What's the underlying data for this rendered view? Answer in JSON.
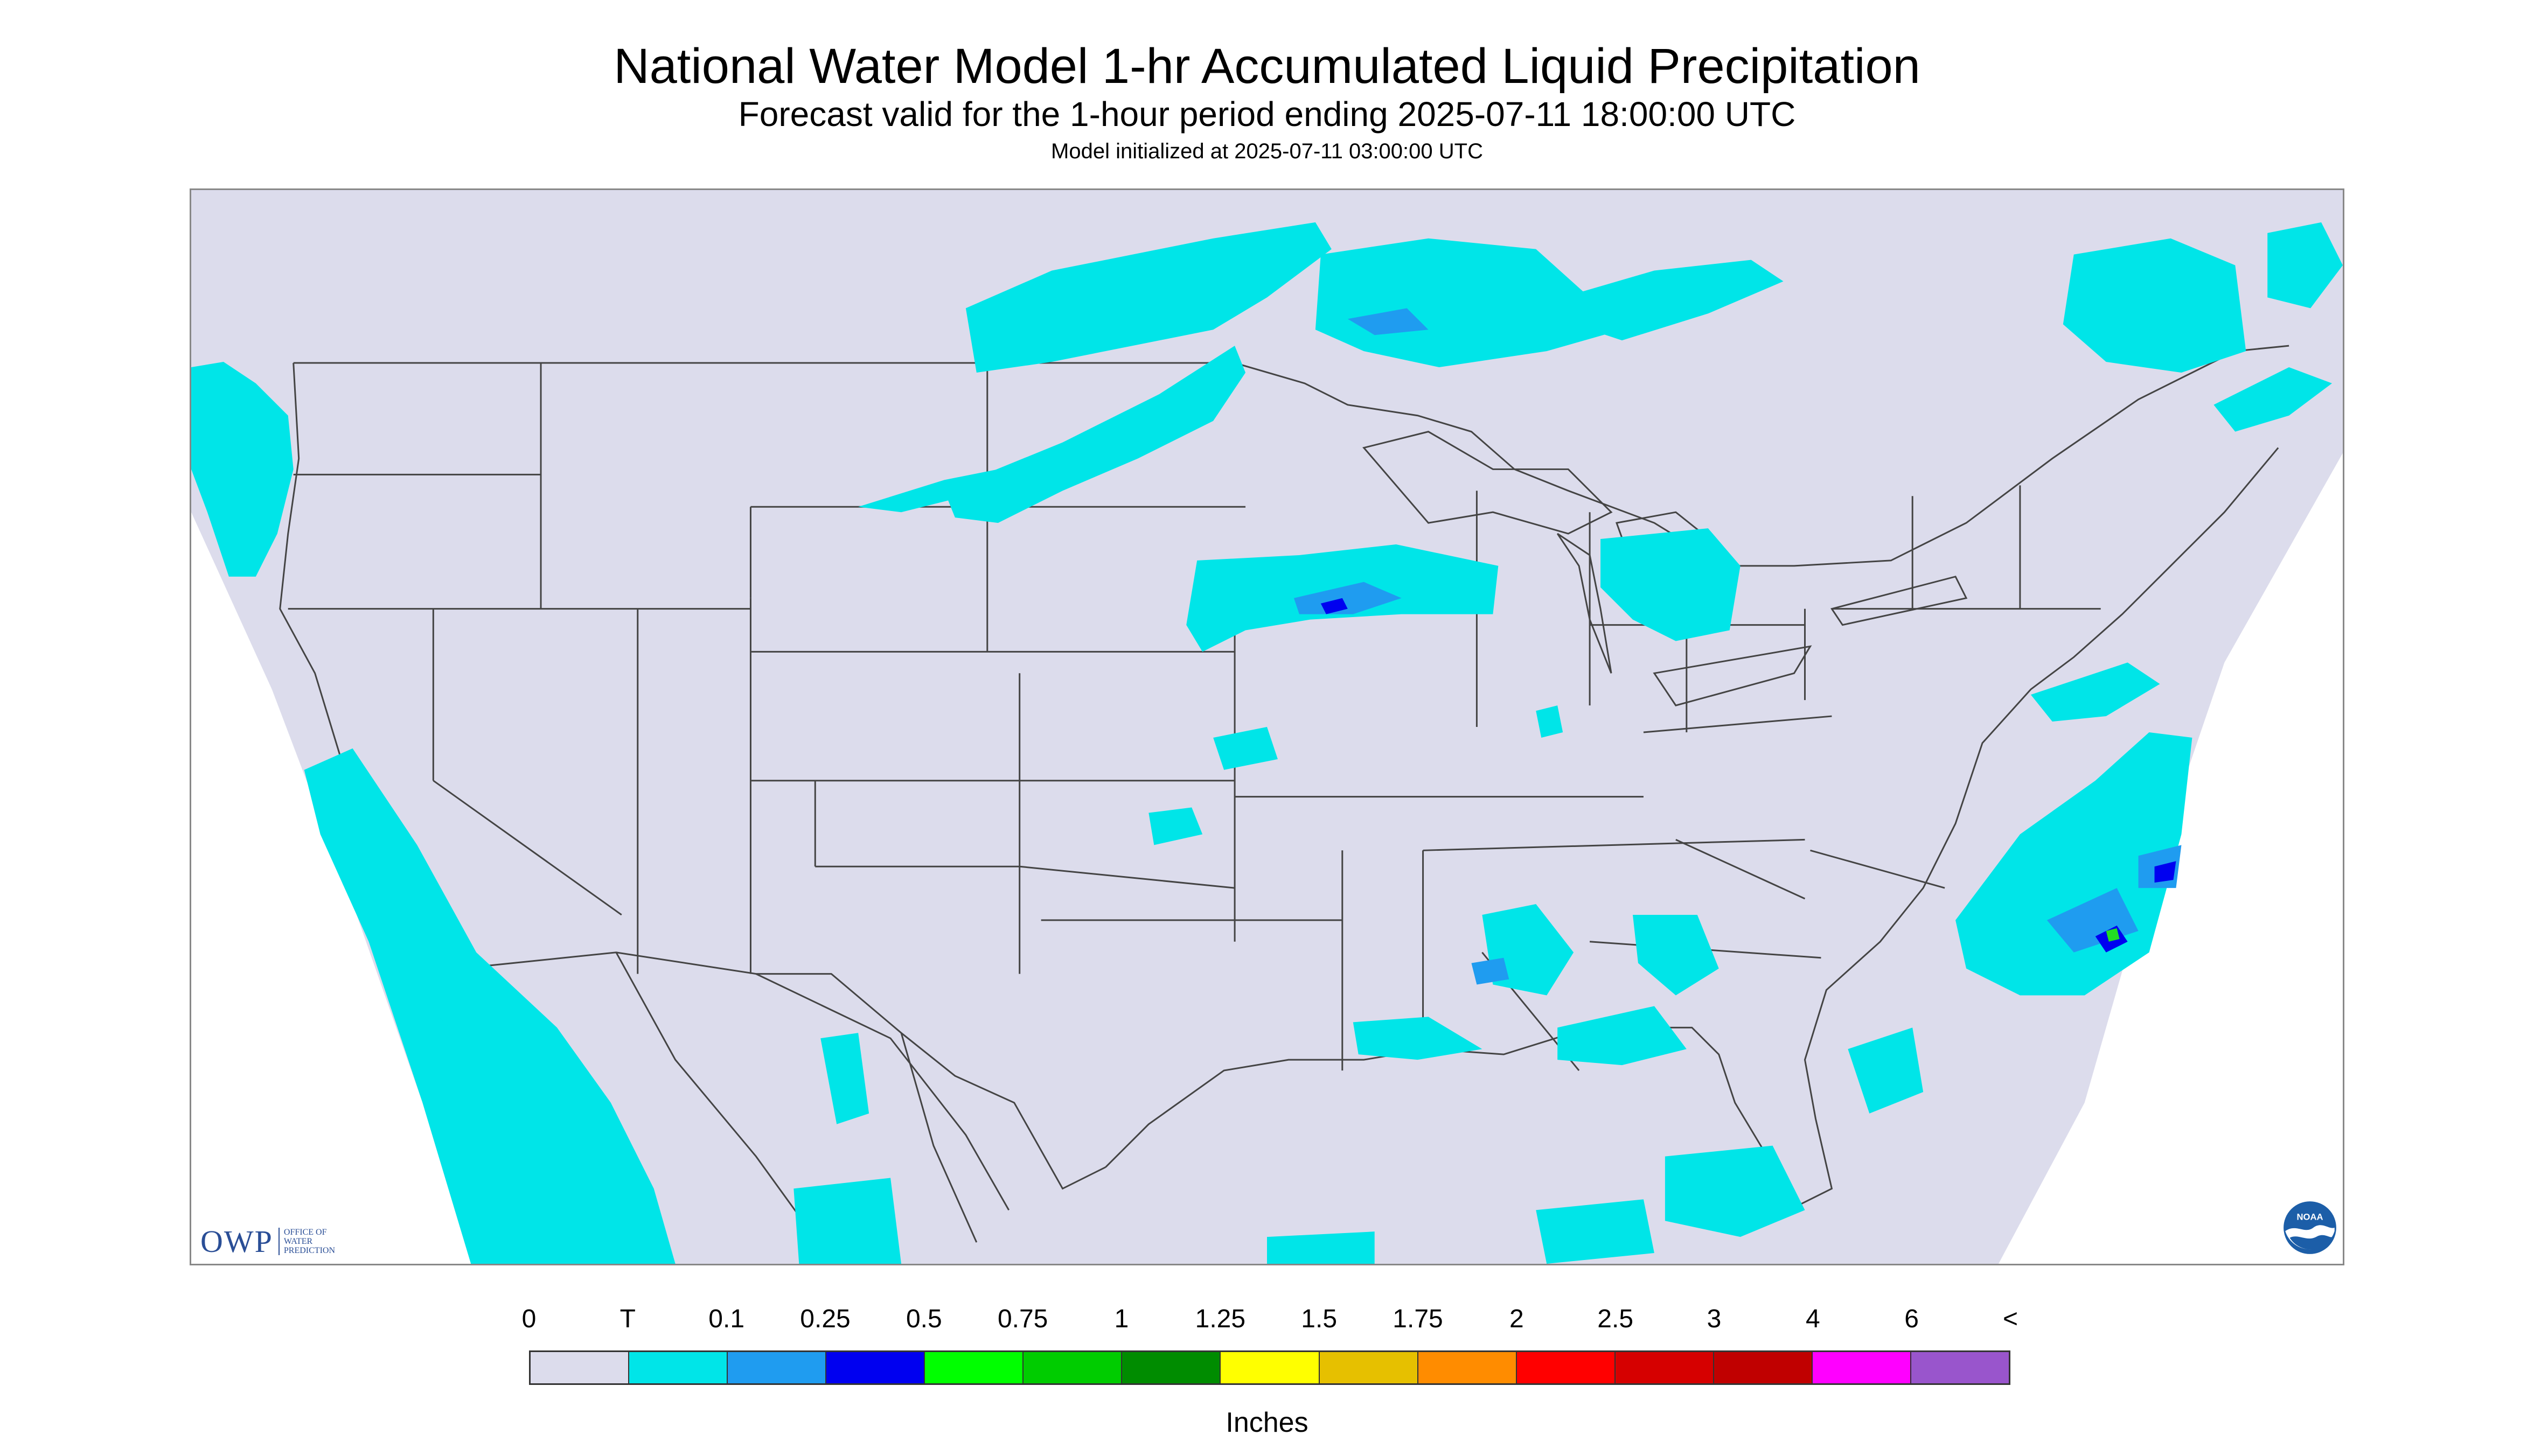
{
  "header": {
    "title": "National Water Model 1-hr Accumulated Liquid Precipitation",
    "subtitle": "Forecast valid for the 1-hour period ending 2025-07-11 18:00:00 UTC",
    "initialized": "Model initialized at 2025-07-11 03:00:00 UTC"
  },
  "map": {
    "region": "Contiguous United States",
    "background_color": "#dcdcec",
    "border_color": "#444444",
    "precip_color_trace": "#00e5e8",
    "precip_color_light": "#1f9cf0",
    "precip_color_moderate": "#0000ff",
    "precip_color_heavy": "#22dd22"
  },
  "logos": {
    "owp_text": "OWP",
    "owp_sub_line1": "Office of",
    "owp_sub_line2": "Water",
    "owp_sub_line3": "Prediction",
    "noaa_text": "NOAA"
  },
  "legend": {
    "labels": [
      "0",
      "T",
      "0.1",
      "0.25",
      "0.5",
      "0.75",
      "1",
      "1.25",
      "1.5",
      "1.75",
      "2",
      "2.5",
      "3",
      "4",
      "6",
      "<"
    ],
    "colors": [
      "#dcdcec",
      "#00e5e8",
      "#1f9cf0",
      "#0000f0",
      "#00ff00",
      "#00cc00",
      "#008c00",
      "#ffff00",
      "#e6c000",
      "#ff8c00",
      "#ff0000",
      "#d60000",
      "#c00000",
      "#ff00ff",
      "#9955cc"
    ],
    "units": "Inches"
  }
}
